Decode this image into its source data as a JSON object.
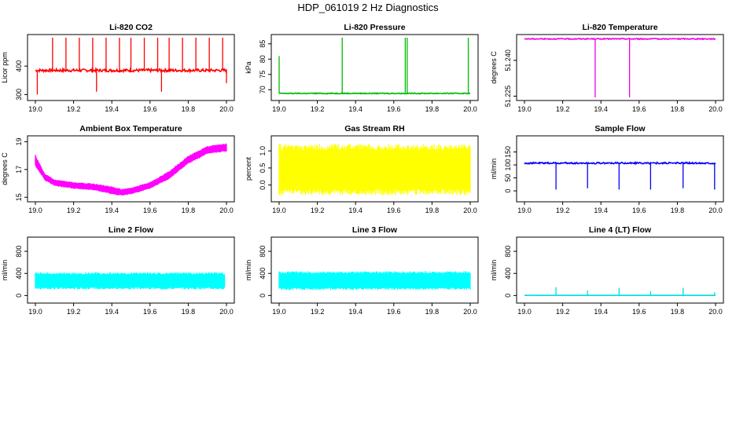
{
  "title": "HDP_061019  2 Hz Diagnostics",
  "chart_data": [
    {
      "type": "line",
      "title": "Li-820 CO2",
      "ylabel": "Licor ppm",
      "color": "#ff0000",
      "xlim": [
        19.0,
        20.0
      ],
      "ylim": [
        290,
        500
      ],
      "xticks": [
        "19.0",
        "19.2",
        "19.4",
        "19.6",
        "19.8",
        "20.0"
      ],
      "yticks": [
        "300",
        "400"
      ],
      "series": [
        {
          "base": 385,
          "noise": 5,
          "spikes": [
            [
              19.01,
              300
            ],
            [
              19.09,
              500
            ],
            [
              19.16,
              500
            ],
            [
              19.23,
              500
            ],
            [
              19.3,
              500
            ],
            [
              19.32,
              310
            ],
            [
              19.37,
              500
            ],
            [
              19.44,
              500
            ],
            [
              19.5,
              500
            ],
            [
              19.57,
              500
            ],
            [
              19.64,
              500
            ],
            [
              19.66,
              310
            ],
            [
              19.7,
              500
            ],
            [
              19.77,
              500
            ],
            [
              19.84,
              500
            ],
            [
              19.91,
              500
            ],
            [
              19.98,
              500
            ],
            [
              20.0,
              340
            ]
          ]
        }
      ]
    },
    {
      "type": "line",
      "title": "Li-820 Pressure",
      "ylabel": "kPa",
      "color": "#00bb00",
      "xlim": [
        19.0,
        20.0
      ],
      "ylim": [
        67.5,
        87
      ],
      "xticks": [
        "19.0",
        "19.2",
        "19.4",
        "19.6",
        "19.8",
        "20.0"
      ],
      "yticks": [
        "70",
        "75",
        "80",
        "85"
      ],
      "series": [
        {
          "base": 68.8,
          "noise": 0.15,
          "spikes": [
            [
              19.0,
              81
            ],
            [
              19.33,
              87
            ],
            [
              19.66,
              87
            ],
            [
              19.67,
              87
            ],
            [
              19.99,
              87
            ]
          ]
        }
      ]
    },
    {
      "type": "line",
      "title": "Li-820 Temperature",
      "ylabel": "degrees C",
      "color": "#ee00ee",
      "xlim": [
        19.0,
        20.0
      ],
      "ylim": [
        51.2245,
        51.2495
      ],
      "xticks": [
        "19.0",
        "19.2",
        "19.4",
        "19.6",
        "19.8",
        "20.0"
      ],
      "yticks": [
        "51.225",
        "51.240"
      ],
      "series": [
        {
          "base": 51.249,
          "noise": 0.0002,
          "spikes": [
            [
              19.37,
              51.2245
            ],
            [
              19.55,
              51.2245
            ]
          ]
        }
      ]
    },
    {
      "type": "area",
      "title": "Ambient Box Temperature",
      "ylabel": "degrees C",
      "color": "#ff00ff",
      "xlim": [
        19.0,
        20.0
      ],
      "ylim": [
        14.9,
        19.2
      ],
      "xticks": [
        "19.0",
        "19.2",
        "19.4",
        "19.6",
        "19.8",
        "20.0"
      ],
      "yticks": [
        "15",
        "17",
        "19"
      ],
      "series": [
        {
          "x": [
            19.0,
            19.05,
            19.1,
            19.2,
            19.3,
            19.4,
            19.45,
            19.5,
            19.6,
            19.7,
            19.8,
            19.9,
            20.0
          ],
          "low": [
            17.2,
            16.2,
            15.8,
            15.6,
            15.5,
            15.2,
            15.1,
            15.2,
            15.6,
            16.3,
            17.4,
            18.1,
            18.3
          ],
          "high": [
            18.1,
            16.7,
            16.3,
            16.1,
            16.0,
            15.8,
            15.6,
            15.7,
            16.1,
            16.9,
            18.0,
            18.7,
            18.9
          ]
        }
      ]
    },
    {
      "type": "area",
      "title": "Gas Stream RH",
      "ylabel": "percent",
      "color": "#ffff00",
      "xlim": [
        19.0,
        20.0
      ],
      "ylim": [
        -0.4,
        1.35
      ],
      "xticks": [
        "19.0",
        "19.2",
        "19.4",
        "19.6",
        "19.8",
        "20.0"
      ],
      "yticks": [
        "0.0",
        "0.5",
        "1.0"
      ],
      "series": [
        {
          "x": [
            19.0,
            20.0
          ],
          "low": [
            -0.3,
            -0.3
          ],
          "high": [
            1.2,
            1.2
          ]
        }
      ]
    },
    {
      "type": "line",
      "title": "Sample Flow",
      "ylabel": "ml/min",
      "color": "#0000ff",
      "xlim": [
        19.0,
        20.0
      ],
      "ylim": [
        -30,
        200
      ],
      "xticks": [
        "19.0",
        "19.2",
        "19.4",
        "19.6",
        "19.8",
        "20.0"
      ],
      "yticks": [
        "0",
        "50",
        "100",
        "150"
      ],
      "series": [
        {
          "base": 107,
          "noise": 3,
          "spikes": [
            [
              19.165,
              5
            ],
            [
              19.33,
              10
            ],
            [
              19.495,
              5
            ],
            [
              19.66,
              5
            ],
            [
              19.83,
              10
            ],
            [
              19.995,
              5
            ]
          ]
        }
      ]
    },
    {
      "type": "area",
      "title": "Line 2 Flow",
      "ylabel": "ml/min",
      "color": "#00ffff",
      "xlim": [
        19.0,
        20.0
      ],
      "ylim": [
        -80,
        1000
      ],
      "xticks": [
        "19.0",
        "19.2",
        "19.4",
        "19.6",
        "19.8",
        "20.0"
      ],
      "yticks": [
        "0",
        "400",
        "800"
      ],
      "series": [
        {
          "x": [
            19.0,
            19.99
          ],
          "low": [
            110,
            110
          ],
          "high": [
            420,
            420
          ]
        }
      ]
    },
    {
      "type": "area",
      "title": "Line 3 Flow",
      "ylabel": "ml/min",
      "color": "#00ffff",
      "xlim": [
        19.0,
        20.0
      ],
      "ylim": [
        -80,
        1000
      ],
      "xticks": [
        "19.0",
        "19.2",
        "19.4",
        "19.6",
        "19.8",
        "20.0"
      ],
      "yticks": [
        "0",
        "400",
        "800"
      ],
      "series": [
        {
          "x": [
            19.0,
            20.0
          ],
          "low": [
            100,
            100
          ],
          "high": [
            440,
            440
          ]
        }
      ]
    },
    {
      "type": "line",
      "title": "Line 4 (LT) Flow",
      "ylabel": "ml/min",
      "color": "#00dddd",
      "xlim": [
        19.0,
        20.0
      ],
      "ylim": [
        -80,
        1000
      ],
      "xticks": [
        "19.0",
        "19.2",
        "19.4",
        "19.6",
        "19.8",
        "20.0"
      ],
      "yticks": [
        "0",
        "400",
        "800"
      ],
      "series": [
        {
          "base": 3,
          "noise": 1,
          "spikes": [
            [
              19.165,
              150
            ],
            [
              19.33,
              90
            ],
            [
              19.495,
              140
            ],
            [
              19.66,
              80
            ],
            [
              19.83,
              140
            ],
            [
              19.995,
              60
            ]
          ]
        }
      ]
    }
  ]
}
